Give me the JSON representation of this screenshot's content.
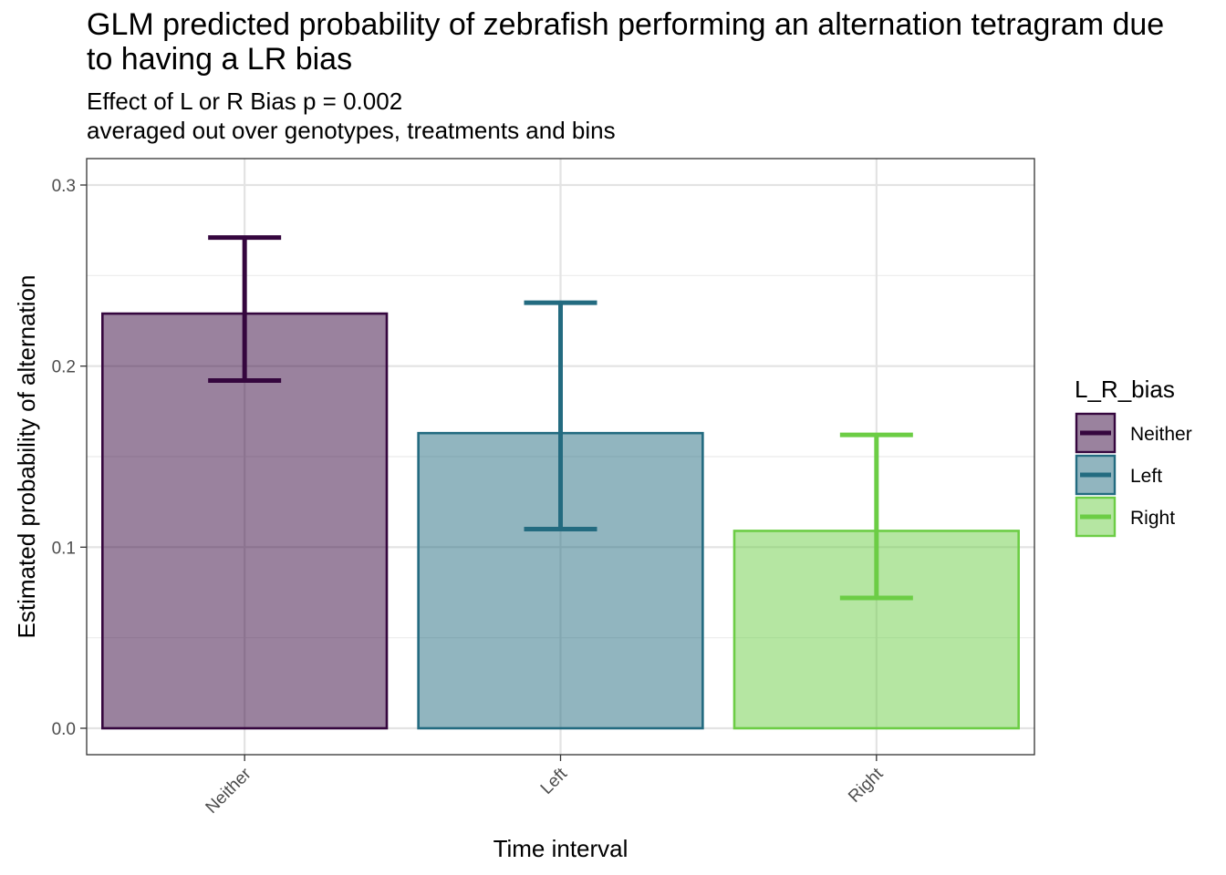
{
  "chart_data": {
    "type": "bar",
    "title": "GLM predicted probability of zebrafish performing an alternation tetragram due to having a LR bias",
    "subtitle_lines": [
      "Effect of L or R Bias p = 0.002",
      "averaged out over genotypes, treatments and bins"
    ],
    "xlabel": "Time interval",
    "ylabel": "Estimated probability of alternation",
    "categories": [
      "Neither",
      "Left",
      "Right"
    ],
    "values": [
      0.229,
      0.163,
      0.109
    ],
    "error_low": [
      0.192,
      0.11,
      0.072
    ],
    "error_high": [
      0.271,
      0.235,
      0.162
    ],
    "ylim": [
      -0.014,
      0.3
    ],
    "yticks": [
      0.0,
      0.1,
      0.2,
      0.3
    ],
    "ytick_labels": [
      "0.0",
      "0.1",
      "0.2",
      "0.3"
    ],
    "grid": true,
    "legend": {
      "title": "L_R_bias",
      "position": "right",
      "entries": [
        "Neither",
        "Left",
        "Right"
      ]
    },
    "colors": [
      "#35063e",
      "#236b80",
      "#6ccd45"
    ]
  }
}
